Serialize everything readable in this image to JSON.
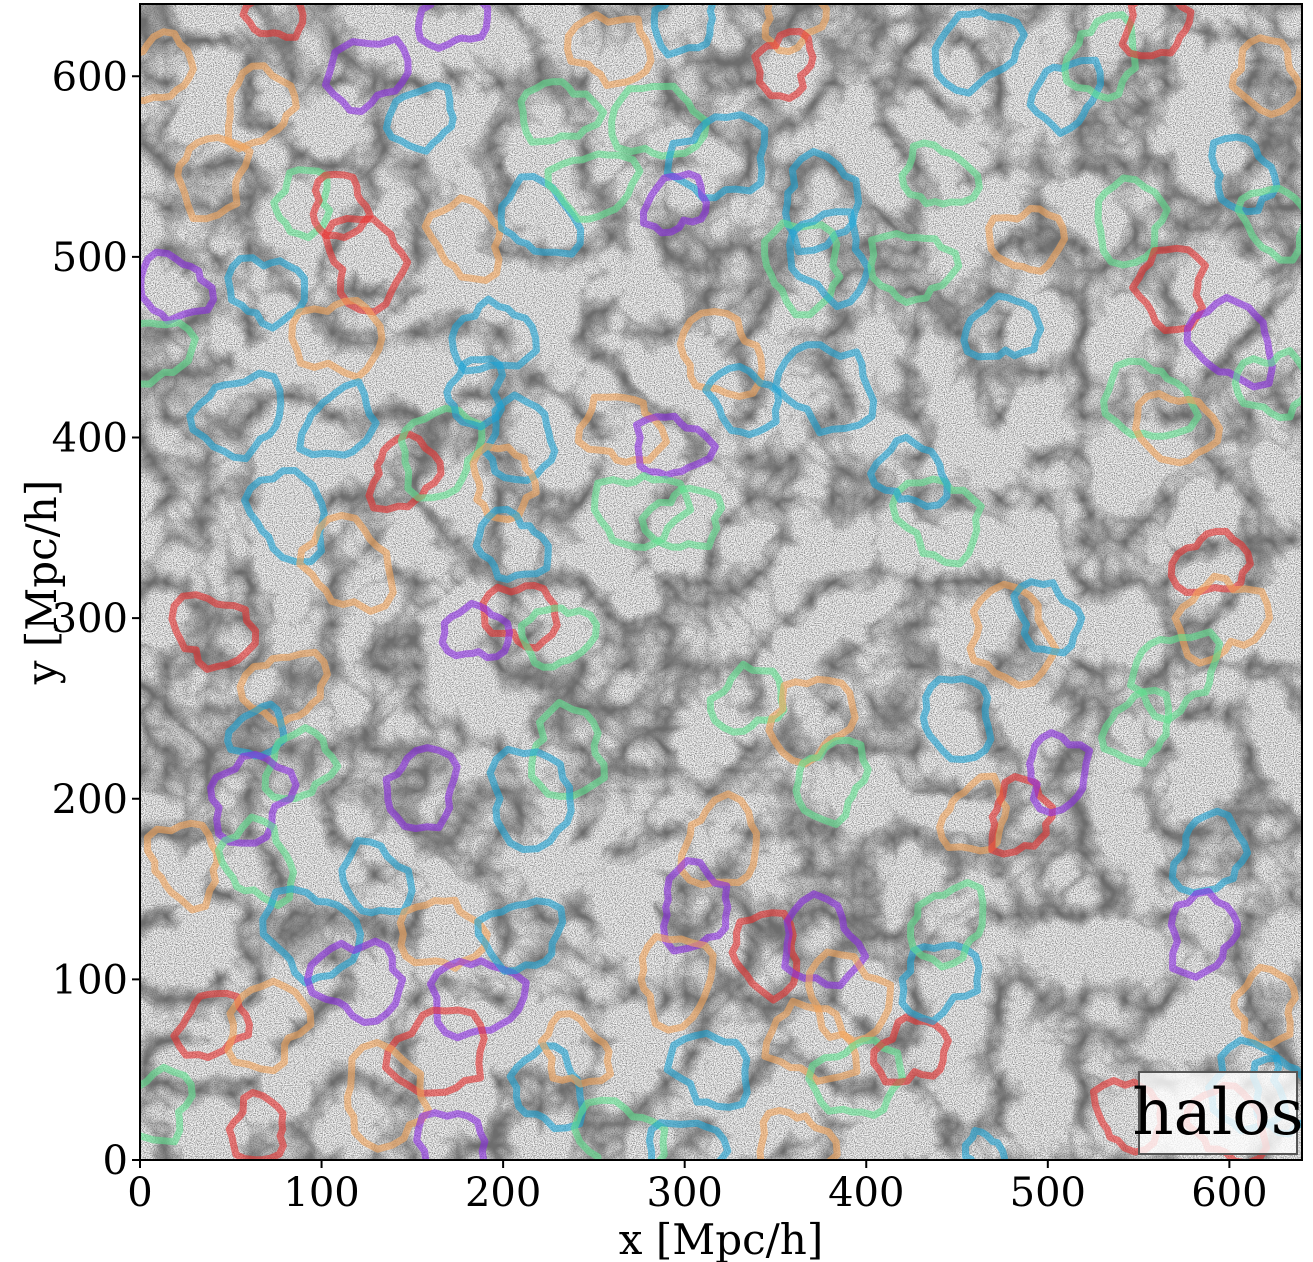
{
  "chart_data": {
    "type": "scatter",
    "title": "",
    "xlabel": "x [Mpc/h]",
    "ylabel": "y [Mpc/h]",
    "xlim": [
      0,
      640
    ],
    "ylim": [
      0,
      640
    ],
    "x_ticks": [
      "0",
      "100",
      "200",
      "300",
      "400",
      "500",
      "600"
    ],
    "y_ticks": [
      "0",
      "100",
      "200",
      "300",
      "400",
      "500",
      "600"
    ],
    "grid": false,
    "legend": {
      "position": "bottom-right",
      "label": "halos"
    },
    "background": "dark-matter halo density field (grey-scale points)",
    "colors": {
      "red": "#e8302e",
      "purple": "#8a2be2",
      "blue": "#1ba3d6",
      "orange": "#f5a55a",
      "green": "#5fe38f"
    },
    "voids": [
      {
        "cx": 75,
        "cy": 634,
        "r": 14,
        "color": "red"
      },
      {
        "cx": 172,
        "cy": 632,
        "r": 17,
        "color": "purple"
      },
      {
        "cx": 125,
        "cy": 602,
        "r": 20,
        "color": "purple"
      },
      {
        "cx": 155,
        "cy": 577,
        "r": 17,
        "color": "blue"
      },
      {
        "cx": 10,
        "cy": 604,
        "r": 18,
        "color": "orange"
      },
      {
        "cx": 65,
        "cy": 583,
        "r": 19,
        "color": "orange"
      },
      {
        "cx": 40,
        "cy": 545,
        "r": 20,
        "color": "orange"
      },
      {
        "cx": 90,
        "cy": 530,
        "r": 16,
        "color": "green"
      },
      {
        "cx": 110,
        "cy": 528,
        "r": 16,
        "color": "red"
      },
      {
        "cx": 125,
        "cy": 497,
        "r": 22,
        "color": "red"
      },
      {
        "cx": 180,
        "cy": 510,
        "r": 20,
        "color": "orange"
      },
      {
        "cx": 220,
        "cy": 522,
        "r": 20,
        "color": "blue"
      },
      {
        "cx": 18,
        "cy": 483,
        "r": 18,
        "color": "purple"
      },
      {
        "cx": 70,
        "cy": 482,
        "r": 19,
        "color": "blue"
      },
      {
        "cx": 110,
        "cy": 455,
        "r": 22,
        "color": "orange"
      },
      {
        "cx": 195,
        "cy": 455,
        "r": 20,
        "color": "blue"
      },
      {
        "cx": 8,
        "cy": 448,
        "r": 18,
        "color": "green"
      },
      {
        "cx": 55,
        "cy": 412,
        "r": 22,
        "color": "blue"
      },
      {
        "cx": 110,
        "cy": 408,
        "r": 19,
        "color": "blue"
      },
      {
        "cx": 145,
        "cy": 380,
        "r": 18,
        "color": "red"
      },
      {
        "cx": 165,
        "cy": 392,
        "r": 22,
        "color": "green"
      },
      {
        "cx": 185,
        "cy": 425,
        "r": 16,
        "color": "blue"
      },
      {
        "cx": 210,
        "cy": 398,
        "r": 20,
        "color": "blue"
      },
      {
        "cx": 200,
        "cy": 375,
        "r": 18,
        "color": "orange"
      },
      {
        "cx": 82,
        "cy": 358,
        "r": 22,
        "color": "blue"
      },
      {
        "cx": 115,
        "cy": 330,
        "r": 24,
        "color": "orange"
      },
      {
        "cx": 205,
        "cy": 340,
        "r": 18,
        "color": "blue"
      },
      {
        "cx": 40,
        "cy": 293,
        "r": 20,
        "color": "red"
      },
      {
        "cx": 210,
        "cy": 302,
        "r": 18,
        "color": "red"
      },
      {
        "cx": 185,
        "cy": 292,
        "r": 16,
        "color": "purple"
      },
      {
        "cx": 230,
        "cy": 290,
        "r": 18,
        "color": "green"
      },
      {
        "cx": 80,
        "cy": 262,
        "r": 20,
        "color": "orange"
      },
      {
        "cx": 65,
        "cy": 237,
        "r": 14,
        "color": "blue"
      },
      {
        "cx": 88,
        "cy": 218,
        "r": 18,
        "color": "green"
      },
      {
        "cx": 60,
        "cy": 200,
        "r": 22,
        "color": "purple"
      },
      {
        "cx": 155,
        "cy": 205,
        "r": 20,
        "color": "purple"
      },
      {
        "cx": 235,
        "cy": 225,
        "r": 22,
        "color": "green"
      },
      {
        "cx": 215,
        "cy": 200,
        "r": 24,
        "color": "blue"
      },
      {
        "cx": 25,
        "cy": 165,
        "r": 20,
        "color": "orange"
      },
      {
        "cx": 65,
        "cy": 165,
        "r": 20,
        "color": "green"
      },
      {
        "cx": 130,
        "cy": 155,
        "r": 18,
        "color": "blue"
      },
      {
        "cx": 95,
        "cy": 125,
        "r": 24,
        "color": "blue"
      },
      {
        "cx": 120,
        "cy": 100,
        "r": 22,
        "color": "purple"
      },
      {
        "cx": 165,
        "cy": 125,
        "r": 20,
        "color": "orange"
      },
      {
        "cx": 185,
        "cy": 90,
        "r": 22,
        "color": "purple"
      },
      {
        "cx": 210,
        "cy": 125,
        "r": 20,
        "color": "blue"
      },
      {
        "cx": 165,
        "cy": 60,
        "r": 24,
        "color": "red"
      },
      {
        "cx": 40,
        "cy": 75,
        "r": 18,
        "color": "red"
      },
      {
        "cx": 70,
        "cy": 75,
        "r": 22,
        "color": "orange"
      },
      {
        "cx": 10,
        "cy": 30,
        "r": 18,
        "color": "green"
      },
      {
        "cx": 65,
        "cy": 17,
        "r": 16,
        "color": "red"
      },
      {
        "cx": 135,
        "cy": 35,
        "r": 24,
        "color": "orange"
      },
      {
        "cx": 172,
        "cy": 5,
        "r": 20,
        "color": "purple"
      },
      {
        "cx": 225,
        "cy": 40,
        "r": 20,
        "color": "blue"
      },
      {
        "cx": 240,
        "cy": 60,
        "r": 18,
        "color": "orange"
      },
      {
        "cx": 265,
        "cy": 10,
        "r": 22,
        "color": "green"
      },
      {
        "cx": 260,
        "cy": 615,
        "r": 20,
        "color": "orange"
      },
      {
        "cx": 285,
        "cy": 575,
        "r": 22,
        "color": "green"
      },
      {
        "cx": 230,
        "cy": 580,
        "r": 18,
        "color": "green"
      },
      {
        "cx": 250,
        "cy": 540,
        "r": 20,
        "color": "green"
      },
      {
        "cx": 320,
        "cy": 555,
        "r": 24,
        "color": "blue"
      },
      {
        "cx": 295,
        "cy": 530,
        "r": 16,
        "color": "purple"
      },
      {
        "cx": 360,
        "cy": 632,
        "r": 16,
        "color": "orange"
      },
      {
        "cx": 355,
        "cy": 606,
        "r": 16,
        "color": "red"
      },
      {
        "cx": 300,
        "cy": 632,
        "r": 18,
        "color": "blue"
      },
      {
        "cx": 375,
        "cy": 530,
        "r": 22,
        "color": "blue"
      },
      {
        "cx": 365,
        "cy": 495,
        "r": 22,
        "color": "green"
      },
      {
        "cx": 380,
        "cy": 500,
        "r": 22,
        "color": "blue"
      },
      {
        "cx": 320,
        "cy": 445,
        "r": 22,
        "color": "orange"
      },
      {
        "cx": 333,
        "cy": 420,
        "r": 18,
        "color": "blue"
      },
      {
        "cx": 378,
        "cy": 428,
        "r": 24,
        "color": "blue"
      },
      {
        "cx": 265,
        "cy": 405,
        "r": 20,
        "color": "orange"
      },
      {
        "cx": 292,
        "cy": 395,
        "r": 18,
        "color": "purple"
      },
      {
        "cx": 275,
        "cy": 360,
        "r": 22,
        "color": "green"
      },
      {
        "cx": 300,
        "cy": 355,
        "r": 18,
        "color": "green"
      },
      {
        "cx": 335,
        "cy": 255,
        "r": 18,
        "color": "green"
      },
      {
        "cx": 370,
        "cy": 245,
        "r": 22,
        "color": "orange"
      },
      {
        "cx": 380,
        "cy": 210,
        "r": 20,
        "color": "green"
      },
      {
        "cx": 320,
        "cy": 175,
        "r": 22,
        "color": "orange"
      },
      {
        "cx": 305,
        "cy": 140,
        "r": 20,
        "color": "purple"
      },
      {
        "cx": 295,
        "cy": 100,
        "r": 22,
        "color": "orange"
      },
      {
        "cx": 345,
        "cy": 115,
        "r": 20,
        "color": "red"
      },
      {
        "cx": 375,
        "cy": 120,
        "r": 22,
        "color": "purple"
      },
      {
        "cx": 390,
        "cy": 90,
        "r": 22,
        "color": "orange"
      },
      {
        "cx": 315,
        "cy": 50,
        "r": 20,
        "color": "blue"
      },
      {
        "cx": 370,
        "cy": 65,
        "r": 22,
        "color": "orange"
      },
      {
        "cx": 360,
        "cy": 10,
        "r": 18,
        "color": "orange"
      },
      {
        "cx": 300,
        "cy": 5,
        "r": 18,
        "color": "blue"
      },
      {
        "cx": 395,
        "cy": 45,
        "r": 22,
        "color": "green"
      },
      {
        "cx": 425,
        "cy": 60,
        "r": 18,
        "color": "red"
      },
      {
        "cx": 440,
        "cy": 100,
        "r": 20,
        "color": "blue"
      },
      {
        "cx": 445,
        "cy": 130,
        "r": 20,
        "color": "green"
      },
      {
        "cx": 460,
        "cy": 190,
        "r": 18,
        "color": "orange"
      },
      {
        "cx": 485,
        "cy": 190,
        "r": 18,
        "color": "red"
      },
      {
        "cx": 505,
        "cy": 215,
        "r": 18,
        "color": "purple"
      },
      {
        "cx": 450,
        "cy": 245,
        "r": 20,
        "color": "blue"
      },
      {
        "cx": 480,
        "cy": 290,
        "r": 24,
        "color": "orange"
      },
      {
        "cx": 500,
        "cy": 300,
        "r": 18,
        "color": "blue"
      },
      {
        "cx": 440,
        "cy": 355,
        "r": 22,
        "color": "green"
      },
      {
        "cx": 425,
        "cy": 380,
        "r": 18,
        "color": "blue"
      },
      {
        "cx": 440,
        "cy": 545,
        "r": 18,
        "color": "green"
      },
      {
        "cx": 425,
        "cy": 495,
        "r": 20,
        "color": "green"
      },
      {
        "cx": 488,
        "cy": 510,
        "r": 18,
        "color": "orange"
      },
      {
        "cx": 475,
        "cy": 460,
        "r": 18,
        "color": "blue"
      },
      {
        "cx": 460,
        "cy": 615,
        "r": 22,
        "color": "blue"
      },
      {
        "cx": 510,
        "cy": 590,
        "r": 18,
        "color": "blue"
      },
      {
        "cx": 530,
        "cy": 610,
        "r": 20,
        "color": "green"
      },
      {
        "cx": 560,
        "cy": 630,
        "r": 18,
        "color": "red"
      },
      {
        "cx": 545,
        "cy": 520,
        "r": 20,
        "color": "green"
      },
      {
        "cx": 568,
        "cy": 483,
        "r": 20,
        "color": "red"
      },
      {
        "cx": 620,
        "cy": 600,
        "r": 18,
        "color": "orange"
      },
      {
        "cx": 607,
        "cy": 545,
        "r": 18,
        "color": "blue"
      },
      {
        "cx": 625,
        "cy": 520,
        "r": 18,
        "color": "green"
      },
      {
        "cx": 602,
        "cy": 453,
        "r": 22,
        "color": "purple"
      },
      {
        "cx": 555,
        "cy": 420,
        "r": 22,
        "color": "green"
      },
      {
        "cx": 570,
        "cy": 405,
        "r": 20,
        "color": "orange"
      },
      {
        "cx": 625,
        "cy": 430,
        "r": 18,
        "color": "green"
      },
      {
        "cx": 590,
        "cy": 330,
        "r": 18,
        "color": "red"
      },
      {
        "cx": 595,
        "cy": 300,
        "r": 22,
        "color": "orange"
      },
      {
        "cx": 570,
        "cy": 270,
        "r": 22,
        "color": "green"
      },
      {
        "cx": 550,
        "cy": 240,
        "r": 18,
        "color": "green"
      },
      {
        "cx": 590,
        "cy": 170,
        "r": 20,
        "color": "blue"
      },
      {
        "cx": 585,
        "cy": 125,
        "r": 20,
        "color": "purple"
      },
      {
        "cx": 620,
        "cy": 85,
        "r": 18,
        "color": "orange"
      },
      {
        "cx": 610,
        "cy": 40,
        "r": 22,
        "color": "blue"
      },
      {
        "cx": 630,
        "cy": 35,
        "r": 18,
        "color": "blue"
      },
      {
        "cx": 545,
        "cy": 25,
        "r": 18,
        "color": "red"
      },
      {
        "cx": 600,
        "cy": 20,
        "r": 20,
        "color": "red"
      },
      {
        "cx": 465,
        "cy": 5,
        "r": 10,
        "color": "blue"
      }
    ]
  }
}
